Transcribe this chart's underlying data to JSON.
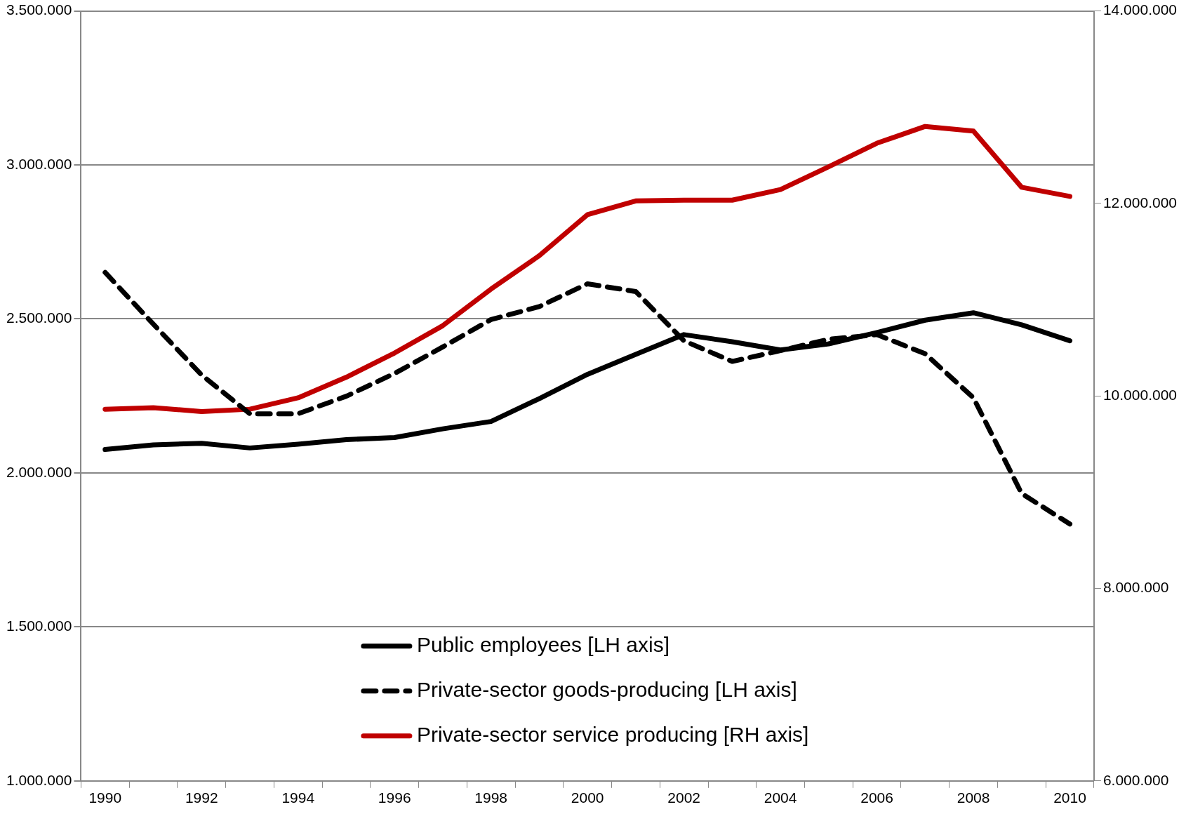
{
  "chart_data": {
    "type": "line",
    "categories": [
      "1990",
      null,
      "1992",
      null,
      "1994",
      null,
      "1996",
      null,
      "1998",
      null,
      "2000",
      null,
      "2002",
      null,
      "2004",
      null,
      "2006",
      null,
      "2008",
      null,
      "2010"
    ],
    "series": [
      {
        "name": "Public employees [LH axis]",
        "color": "#000000",
        "line_style": "solid",
        "axis": "y",
        "values": [
          2076000,
          2091000,
          2096000,
          2081000,
          2093000,
          2108000,
          2115000,
          2143000,
          2167000,
          2241000,
          2320000,
          2385000,
          2449000,
          2426000,
          2399000,
          2419000,
          2456000,
          2496000,
          2520000,
          2481000,
          2429000
        ]
      },
      {
        "name": "Private-sector goods-producing [LH axis]",
        "color": "#000000",
        "line_style": "dashed",
        "axis": "y",
        "values": [
          2651000,
          2483000,
          2318000,
          2192000,
          2192000,
          2249000,
          2323000,
          2409000,
          2498000,
          2540000,
          2614000,
          2589000,
          2429000,
          2362000,
          2397000,
          2434000,
          2449000,
          2387000,
          2244000,
          1933000,
          1834000
        ]
      },
      {
        "name": "Private-sector service producing [RH axis]",
        "color": "#c00000",
        "line_style": "solid",
        "axis": "y2",
        "values": [
          9862000,
          9878000,
          9838000,
          9862000,
          9980000,
          10194000,
          10446000,
          10730000,
          11110000,
          11457000,
          11884000,
          12026000,
          12034000,
          12034000,
          12144000,
          12381000,
          12626000,
          12800000,
          12752000,
          12168000,
          12073000
        ]
      }
    ],
    "ylim": [
      1000000,
      3500000
    ],
    "yticks": [
      {
        "value": 1000000,
        "label": "1.000.000"
      },
      {
        "value": 1500000,
        "label": "1.500.000"
      },
      {
        "value": 2000000,
        "label": "2.000.000"
      },
      {
        "value": 2500000,
        "label": "2.500.000"
      },
      {
        "value": 3000000,
        "label": "3.000.000"
      },
      {
        "value": 3500000,
        "label": "3.500.000"
      }
    ],
    "y2lim": [
      6000000,
      14000000
    ],
    "y2ticks": [
      {
        "value": 6000000,
        "label": "6.000.000"
      },
      {
        "value": 8000000,
        "label": "8.000.000"
      },
      {
        "value": 10000000,
        "label": "10.000.000"
      },
      {
        "value": 12000000,
        "label": "12.000.000"
      },
      {
        "value": 14000000,
        "label": "14.000.000"
      }
    ],
    "grid": "y",
    "legend": "bottom"
  }
}
